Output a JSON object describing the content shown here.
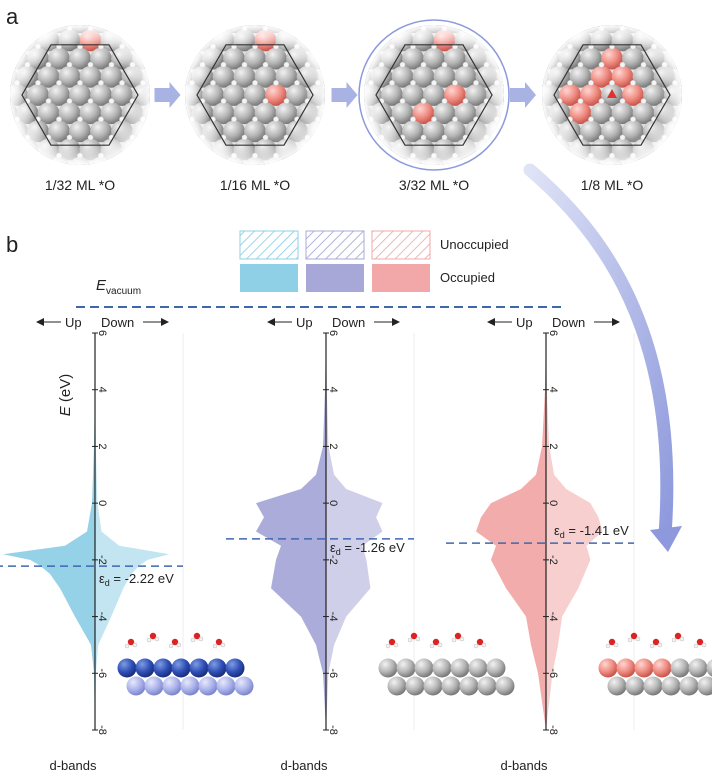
{
  "panel_a": {
    "label": "a",
    "coverages": [
      "1/32 ML *O",
      "1/16 ML *O",
      "3/32 ML *O",
      "1/8 ML *O"
    ],
    "oxygen_sites": [
      [
        2
      ],
      [
        2,
        14
      ],
      [
        2,
        14,
        17
      ],
      [
        5,
        8,
        9,
        11,
        12,
        14,
        16
      ]
    ],
    "highlighted_index": 2
  },
  "panel_b": {
    "label": "b",
    "legend": {
      "unoccupied_label": "Unoccupied",
      "occupied_label": "Occupied",
      "colors": [
        "#8fd0e6",
        "#a8a8d8",
        "#f2a8a8"
      ]
    },
    "evacuum_label": {
      "main": "E",
      "sub": "vacuum"
    },
    "up_label": "Up",
    "down_label": "Down",
    "ylabel": {
      "main": "E",
      "unit": "(eV)"
    },
    "ticks": [
      "6",
      "4",
      "2",
      "0",
      "-2",
      "-4",
      "-6",
      "-8"
    ],
    "xlabel": "d-bands",
    "eps_symbol": "ε",
    "eps_sub": "d",
    "panels": [
      {
        "eps_label": " = -2.22 eV",
        "color": "#8fd0e6",
        "dark": "#5fb4d4",
        "slab": "blue"
      },
      {
        "eps_label": " = -1.26 eV",
        "color": "#a8a8d8",
        "dark": "#8a8ac6",
        "slab": "gray"
      },
      {
        "eps_label": " = -1.41 eV",
        "color": "#f2a8a8",
        "dark": "#e88e8e",
        "slab": "mixed"
      }
    ]
  },
  "chart_data": [
    {
      "type": "area",
      "x": [
        -8,
        -6,
        -5,
        -4,
        -3,
        -2.5,
        -2.2,
        -2,
        -1.8,
        -1.5,
        -1,
        0,
        2,
        4,
        6
      ],
      "series": [
        {
          "values": [
            0,
            0.01,
            0.04,
            0.2,
            0.35,
            0.45,
            0.55,
            0.65,
            0.92,
            0.3,
            0.08,
            0.03,
            0.01,
            0,
            0
          ]
        }
      ],
      "eps_d": -2.22,
      "ylim": [
        -8,
        6
      ]
    },
    {
      "type": "area",
      "x": [
        -8,
        -6,
        -5,
        -4,
        -3,
        -2,
        -1.5,
        -1,
        -0.5,
        0,
        0.5,
        1,
        2,
        4,
        6
      ],
      "series": [
        {
          "values": [
            0,
            0.03,
            0.1,
            0.25,
            0.55,
            0.5,
            0.45,
            0.7,
            0.62,
            0.7,
            0.25,
            0.1,
            0.03,
            0.01,
            0
          ]
        }
      ],
      "eps_d": -1.26,
      "ylim": [
        -8,
        6
      ]
    },
    {
      "type": "area",
      "x": [
        -8,
        -6,
        -5,
        -4,
        -3,
        -2,
        -1.5,
        -1,
        -0.5,
        0,
        0.5,
        1,
        2,
        4,
        6
      ],
      "series": [
        {
          "values": [
            0,
            0.08,
            0.15,
            0.2,
            0.4,
            0.55,
            0.5,
            0.7,
            0.65,
            0.55,
            0.25,
            0.1,
            0.04,
            0.01,
            0
          ]
        }
      ],
      "eps_d": -1.41,
      "ylim": [
        -8,
        6
      ]
    }
  ]
}
